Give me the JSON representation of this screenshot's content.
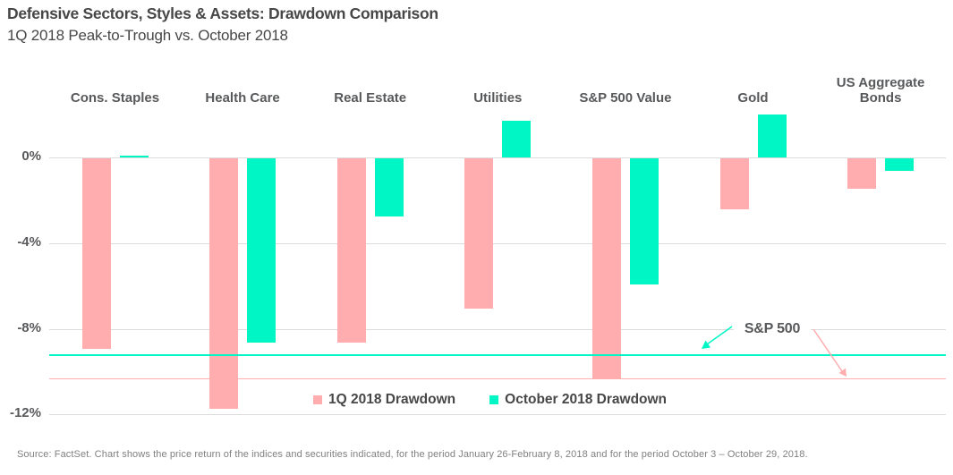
{
  "header": {
    "title": "Defensive Sectors, Styles & Assets: Drawdown Comparison",
    "subtitle": "1Q 2018 Peak-to-Trough vs. October 2018"
  },
  "chart_data": {
    "type": "bar",
    "title": "Defensive Sectors, Styles & Assets: Drawdown Comparison",
    "subtitle": "1Q 2018 Peak-to-Trough vs. October 2018",
    "categories": [
      "Cons. Staples",
      "Health Care",
      "Real Estate",
      "Utilities",
      "S&P 500 Value",
      "Gold",
      "US Aggregate Bonds"
    ],
    "series": [
      {
        "name": "1Q 2018 Drawdown",
        "color": "#FFADAF",
        "values": [
          -8.9,
          -11.7,
          -8.6,
          -7.0,
          -10.3,
          -2.4,
          -1.4
        ]
      },
      {
        "name": "October 2018 Drawdown",
        "color": "#00F6C4",
        "values": [
          0.1,
          -8.6,
          -2.7,
          1.7,
          -5.9,
          2.0,
          -0.6
        ]
      }
    ],
    "y_ticks": [
      {
        "label": "0%",
        "value": 0
      },
      {
        "label": "-4%",
        "value": -4
      },
      {
        "label": "-8%",
        "value": -8
      },
      {
        "label": "-12%",
        "value": -12
      }
    ],
    "ylim": [
      -12.6,
      2.3
    ],
    "unit": "%",
    "grid": "horizontal",
    "legend_position": "bottom-center",
    "annotation": {
      "label": "S&P 500"
    },
    "reference_lines": [
      {
        "name": "S&P 500 October 2018 Drawdown",
        "value": -9.2,
        "color": "#00F6C4"
      },
      {
        "name": "S&P 500 1Q 2018 Drawdown",
        "value": -10.3,
        "color": "#FFADAF"
      }
    ]
  },
  "footer": {
    "source": "Source: FactSet. Chart shows the price return of the indices and securities indicated, for the period January 26-February 8, 2018 and for the period October 3 – October 29, 2018."
  },
  "colors": {
    "pink": "#FFADAF",
    "teal": "#00F6C4",
    "grid": "#DBDBDB",
    "text": "#474747",
    "label": "#58595B",
    "footer": "#808080"
  }
}
